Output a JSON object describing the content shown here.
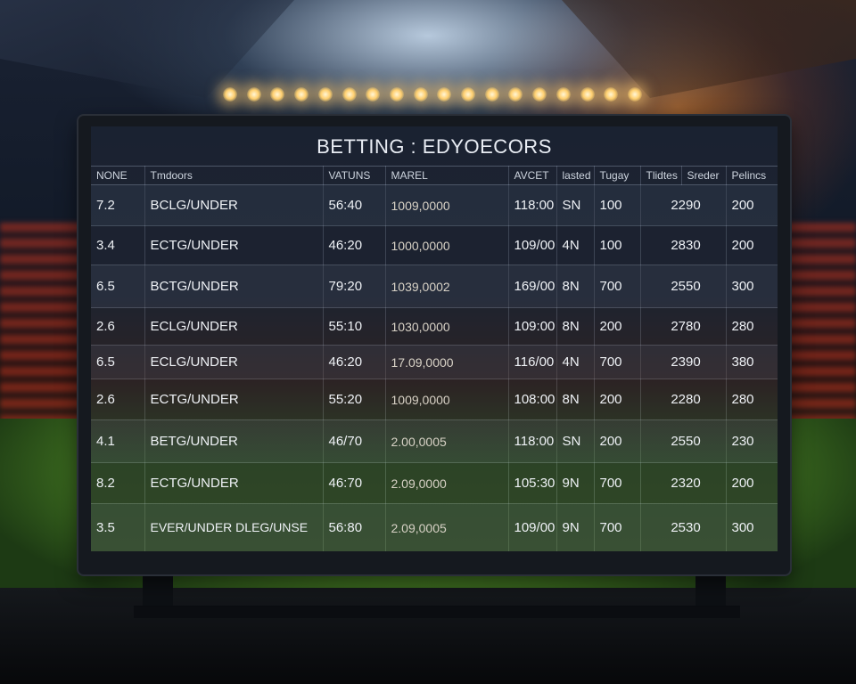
{
  "board": {
    "title": "BETTING : EDYOECORS",
    "columns": [
      "NONE",
      "Tmdoors",
      "VATUNS",
      "MAREL",
      "AVCET",
      "lasted",
      "Tugay",
      "Tlidtes",
      "Sreder",
      "Pelincs"
    ],
    "rows": [
      {
        "num": "7.2",
        "name": "BCLG/UNDER",
        "vatuns": "56:40",
        "market": "1009,0000",
        "avcet": "118:00",
        "lasted": "SN",
        "tugay": "100",
        "tlidtes": "2290",
        "pelincs": "200"
      },
      {
        "num": "3.4",
        "name": "ECTG/UNDER",
        "vatuns": "46:20",
        "market": "1000,0000",
        "avcet": "109/00",
        "lasted": "4N",
        "tugay": "100",
        "tlidtes": "2830",
        "pelincs": "200"
      },
      {
        "num": "6.5",
        "name": "BCTG/UNDER",
        "vatuns": "79:20",
        "market": "1039,0002",
        "avcet": "169/00",
        "lasted": "8N",
        "tugay": "700",
        "tlidtes": "2550",
        "pelincs": "300"
      },
      {
        "num": "2.6",
        "name": "ECLG/UNDER",
        "vatuns": "55:10",
        "market": "1030,0000",
        "avcet": "109:00",
        "lasted": "8N",
        "tugay": "200",
        "tlidtes": "2780",
        "pelincs": "280"
      },
      {
        "num": "6.5",
        "name": "ECLG/UNDER",
        "vatuns": "46:20",
        "market": "17.09,0000",
        "avcet": "116/00",
        "lasted": "4N",
        "tugay": "700",
        "tlidtes": "2390",
        "pelincs": "380"
      },
      {
        "num": "2.6",
        "name": "ECTG/UNDER",
        "vatuns": "55:20",
        "market": "1009,0000",
        "avcet": "108:00",
        "lasted": "8N",
        "tugay": "200",
        "tlidtes": "2280",
        "pelincs": "280"
      },
      {
        "num": "4.1",
        "name": "BETG/UNDER",
        "vatuns": "46/70",
        "market": "2.00,0005",
        "avcet": "118:00",
        "lasted": "SN",
        "tugay": "200",
        "tlidtes": "2550",
        "pelincs": "230"
      },
      {
        "num": "8.2",
        "name": "ECTG/UNDER",
        "vatuns": "46:70",
        "market": "2.09,0000",
        "avcet": "105:30",
        "lasted": "9N",
        "tugay": "700",
        "tlidtes": "2320",
        "pelincs": "200"
      },
      {
        "num": "3.5",
        "name": "EVER/UNDER DLEG/UNSE",
        "vatuns": "56:80",
        "market": "2.09,0005",
        "avcet": "109/00",
        "lasted": "9N",
        "tugay": "700",
        "tlidtes": "2530",
        "pelincs": "300"
      }
    ]
  }
}
